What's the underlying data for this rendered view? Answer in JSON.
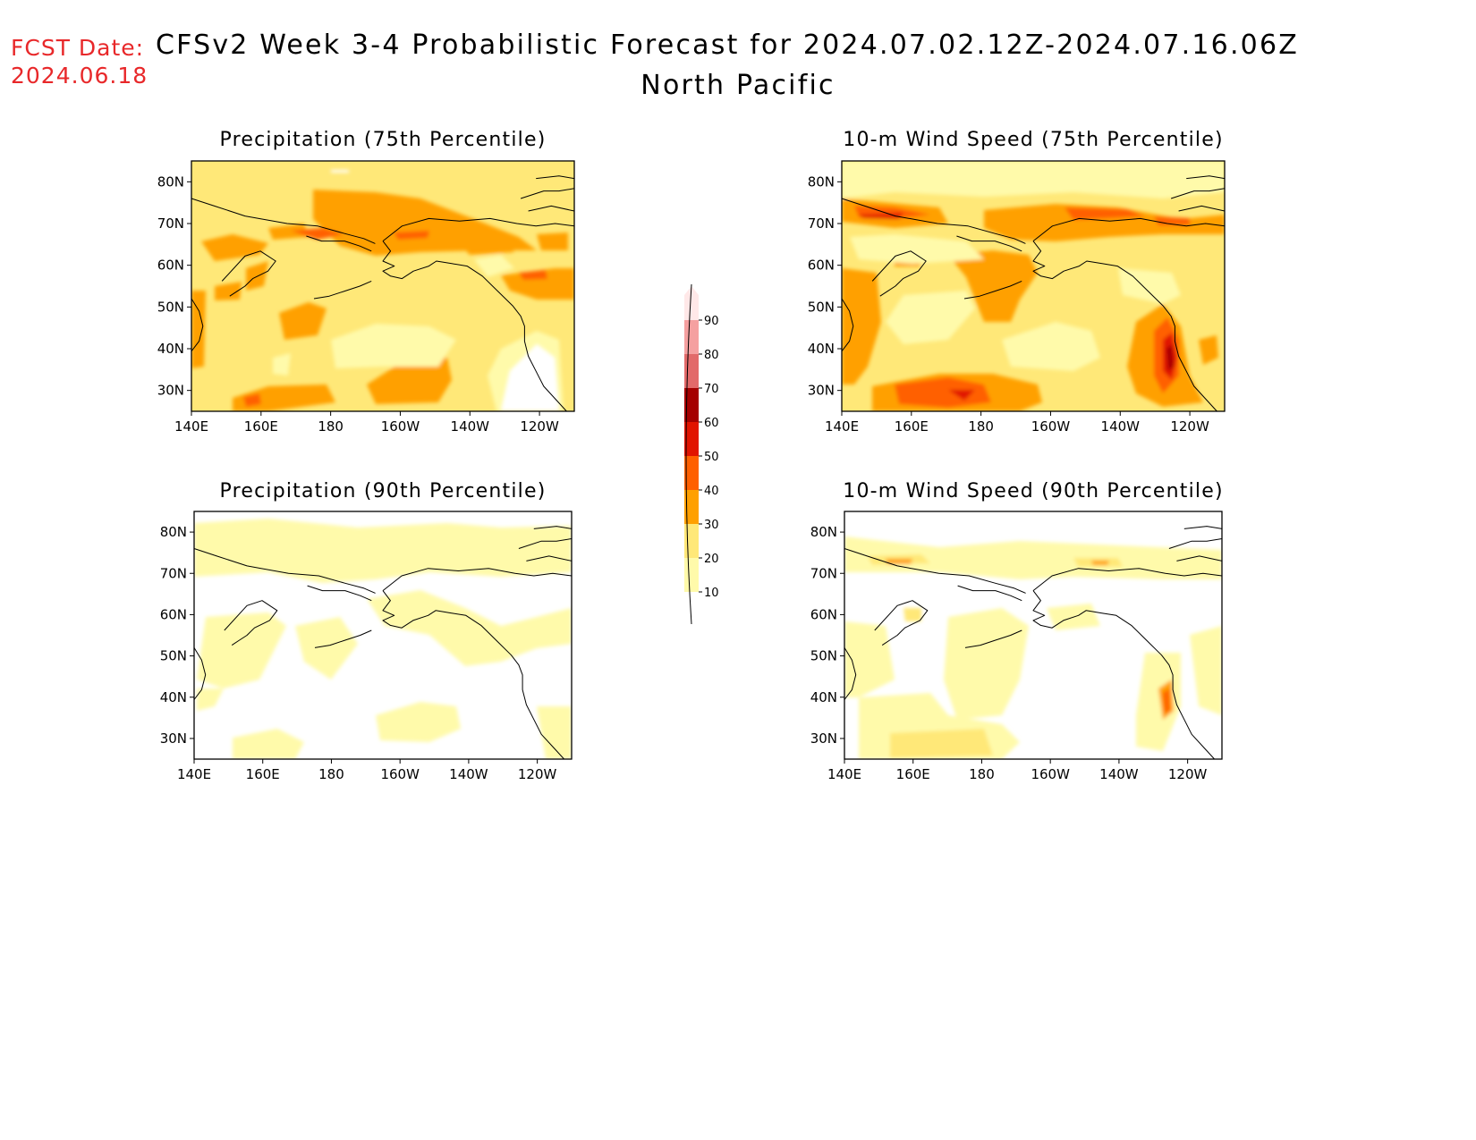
{
  "header": {
    "fcst_label": "FCST Date:",
    "fcst_date": "2024.06.18",
    "title": "CFSv2 Week 3-4 Probabilistic Forecast for 2024.07.02.12Z-2024.07.16.06Z",
    "region": "North Pacific"
  },
  "panels": [
    {
      "id": "precip75",
      "title": "Precipitation (75th Percentile)"
    },
    {
      "id": "wind75",
      "title": "10-m Wind Speed (75th Percentile)"
    },
    {
      "id": "precip90",
      "title": "Precipitation (90th Percentile)"
    },
    {
      "id": "wind90",
      "title": "10-m Wind Speed (90th Percentile)"
    }
  ],
  "axes": {
    "lon_labels": [
      "140E",
      "160E",
      "180",
      "160W",
      "140W",
      "120W"
    ],
    "lat_labels": [
      "80N",
      "70N",
      "60N",
      "50N",
      "40N",
      "30N"
    ]
  },
  "colorbar": {
    "levels": [
      "10",
      "20",
      "30",
      "40",
      "50",
      "60",
      "70",
      "80",
      "90"
    ],
    "colors": [
      "#fffaaa",
      "#ffe878",
      "#ffa000",
      "#ff6000",
      "#e11400",
      "#a50000",
      "#e26a6a",
      "#f5a0a0",
      "#ffe8e8"
    ]
  }
}
